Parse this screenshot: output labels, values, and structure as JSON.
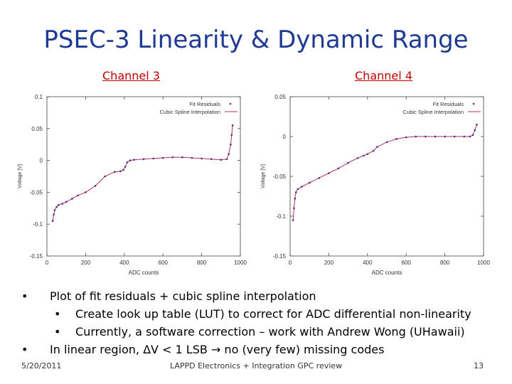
{
  "slide": {
    "title": "PSEC-3 Linearity & Dynamic Range",
    "footer_date": "5/20/2011",
    "footer_center": "LAPPD Electronics + Integration GPC review",
    "page_number": "13"
  },
  "bullets": [
    {
      "level": 1,
      "text": "Plot of fit residuals + cubic spline interpolation"
    },
    {
      "level": 2,
      "text": "Create look up table (LUT) to correct for ADC differential non-linearity"
    },
    {
      "level": 2,
      "text": "Currently, a software correction – work with Andrew Wong (UHawaii)"
    },
    {
      "level": 1,
      "text": "In linear region,  ΔV < 1 LSB → no (very few) missing codes"
    }
  ],
  "chart_data": [
    {
      "type": "scatter",
      "title": "Channel 3",
      "xlabel": "ADC counts",
      "ylabel": "Voltage [V]",
      "xlim": [
        0,
        1000
      ],
      "ylim": [
        -0.15,
        0.1
      ],
      "xticks": [
        "0",
        "200",
        "400",
        "600",
        "800",
        "1000"
      ],
      "yticks": [
        "-0.15",
        "-0.1",
        "-0.05",
        "0",
        "0.05",
        "0.1"
      ],
      "legend_position": "top-right",
      "marker_color": "#4b2d87",
      "line_color": "#b03060",
      "series": [
        {
          "name": "Fit Residuals",
          "kind": "points"
        },
        {
          "name": "Cubic Spline Interpolation",
          "kind": "line"
        }
      ],
      "x": [
        30,
        35,
        40,
        50,
        60,
        80,
        100,
        130,
        160,
        200,
        250,
        300,
        350,
        380,
        395,
        405,
        415,
        430,
        450,
        500,
        550,
        600,
        650,
        700,
        750,
        800,
        850,
        900,
        930,
        940,
        950,
        955,
        960
      ],
      "y": [
        -0.095,
        -0.085,
        -0.078,
        -0.073,
        -0.07,
        -0.068,
        -0.065,
        -0.06,
        -0.055,
        -0.05,
        -0.04,
        -0.025,
        -0.018,
        -0.017,
        -0.015,
        -0.01,
        -0.003,
        0.0,
        0.001,
        0.002,
        0.003,
        0.004,
        0.005,
        0.005,
        0.004,
        0.003,
        0.002,
        0.001,
        0.002,
        0.01,
        0.025,
        0.04,
        0.055
      ]
    },
    {
      "type": "scatter",
      "title": "Channel  4",
      "xlabel": "ADC counts",
      "ylabel": "Voltage [V]",
      "xlim": [
        0,
        1000
      ],
      "ylim": [
        -0.15,
        0.05
      ],
      "xticks": [
        "0",
        "200",
        "400",
        "600",
        "800",
        "1000"
      ],
      "yticks": [
        "-0.15",
        "-0.1",
        "-0.05",
        "0",
        "0.05"
      ],
      "legend_position": "top-right",
      "marker_color": "#4b2d87",
      "line_color": "#b03060",
      "series": [
        {
          "name": "Fit Residuals",
          "kind": "points"
        },
        {
          "name": "Cubic Spline Interpolation",
          "kind": "line"
        }
      ],
      "x": [
        15,
        20,
        25,
        30,
        40,
        60,
        100,
        150,
        200,
        250,
        300,
        350,
        380,
        400,
        430,
        450,
        500,
        550,
        600,
        650,
        700,
        750,
        800,
        850,
        900,
        930,
        945,
        955,
        965
      ],
      "y": [
        -0.105,
        -0.09,
        -0.078,
        -0.07,
        -0.066,
        -0.063,
        -0.058,
        -0.052,
        -0.046,
        -0.04,
        -0.033,
        -0.027,
        -0.024,
        -0.022,
        -0.018,
        -0.013,
        -0.007,
        -0.003,
        -0.001,
        0.0,
        0.0,
        0.0,
        0.0,
        0.0,
        0.0,
        0.0,
        0.002,
        0.008,
        0.015
      ]
    }
  ]
}
